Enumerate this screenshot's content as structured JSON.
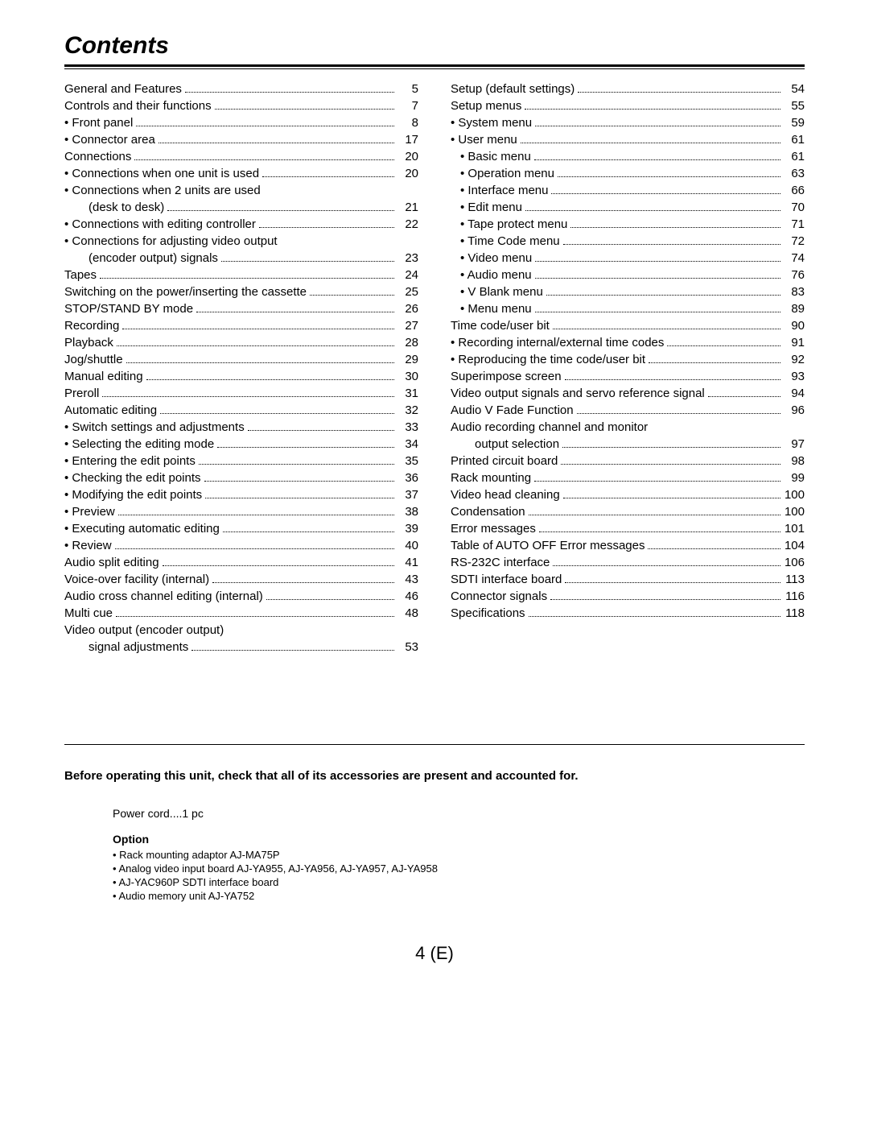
{
  "title": "Contents",
  "left": [
    {
      "label": "General and Features",
      "page": "5",
      "indent": 0
    },
    {
      "label": "Controls and their functions",
      "page": "7",
      "indent": 0
    },
    {
      "label": "• Front panel",
      "page": "8",
      "indent": 0
    },
    {
      "label": "• Connector area",
      "page": "17",
      "indent": 0
    },
    {
      "label": "Connections",
      "page": "20",
      "indent": 0
    },
    {
      "label": "• Connections when one unit is used",
      "page": "20",
      "indent": 0
    },
    {
      "label": "• Connections when 2 units are used",
      "noline": true,
      "indent": 0
    },
    {
      "label": "(desk to desk)",
      "page": "21",
      "indent": 2
    },
    {
      "label": "• Connections with editing controller",
      "page": "22",
      "indent": 0
    },
    {
      "label": "• Connections for adjusting video output",
      "noline": true,
      "indent": 0
    },
    {
      "label": "(encoder output) signals",
      "page": "23",
      "indent": 2
    },
    {
      "label": "Tapes",
      "page": "24",
      "indent": 0
    },
    {
      "label": "Switching on the power/inserting the cassette",
      "page": "25",
      "indent": 0
    },
    {
      "label": "STOP/STAND BY mode",
      "page": "26",
      "indent": 0
    },
    {
      "label": "Recording",
      "page": "27",
      "indent": 0
    },
    {
      "label": "Playback",
      "page": "28",
      "indent": 0
    },
    {
      "label": "Jog/shuttle",
      "page": "29",
      "indent": 0
    },
    {
      "label": "Manual editing",
      "page": "30",
      "indent": 0
    },
    {
      "label": "Preroll",
      "page": "31",
      "indent": 0
    },
    {
      "label": "Automatic editing",
      "page": "32",
      "indent": 0
    },
    {
      "label": "• Switch settings and adjustments",
      "page": "33",
      "indent": 0
    },
    {
      "label": "• Selecting the editing mode",
      "page": "34",
      "indent": 0
    },
    {
      "label": "• Entering the edit points",
      "page": "35",
      "indent": 0
    },
    {
      "label": "• Checking the edit points",
      "page": "36",
      "indent": 0
    },
    {
      "label": "• Modifying the edit points",
      "page": "37",
      "indent": 0
    },
    {
      "label": "• Preview",
      "page": "38",
      "indent": 0
    },
    {
      "label": "• Executing automatic editing",
      "page": "39",
      "indent": 0
    },
    {
      "label": "• Review",
      "page": "40",
      "indent": 0
    },
    {
      "label": "Audio split editing",
      "page": "41",
      "indent": 0
    },
    {
      "label": "Voice-over facility (internal)",
      "page": "43",
      "indent": 0
    },
    {
      "label": "Audio cross channel editing (internal)",
      "page": "46",
      "indent": 0
    },
    {
      "label": "Multi cue",
      "page": "48",
      "indent": 0
    },
    {
      "label": "Video output (encoder output)",
      "noline": true,
      "indent": 0
    },
    {
      "label": "signal adjustments",
      "page": "53",
      "indent": 2
    }
  ],
  "right": [
    {
      "label": "Setup (default settings)",
      "page": "54",
      "indent": 0
    },
    {
      "label": "Setup menus",
      "page": "55",
      "indent": 0
    },
    {
      "label": "• System menu",
      "page": "59",
      "indent": 0
    },
    {
      "label": "• User menu",
      "page": "61",
      "indent": 0
    },
    {
      "label": "• Basic menu",
      "page": "61",
      "indent": 1
    },
    {
      "label": "• Operation menu",
      "page": "63",
      "indent": 1
    },
    {
      "label": "• Interface menu",
      "page": "66",
      "indent": 1
    },
    {
      "label": "• Edit menu",
      "page": "70",
      "indent": 1
    },
    {
      "label": "• Tape protect menu",
      "page": "71",
      "indent": 1
    },
    {
      "label": "• Time Code menu",
      "page": "72",
      "indent": 1
    },
    {
      "label": "• Video menu",
      "page": "74",
      "indent": 1
    },
    {
      "label": "• Audio menu",
      "page": "76",
      "indent": 1
    },
    {
      "label": "• V Blank menu",
      "page": "83",
      "indent": 1
    },
    {
      "label": "• Menu menu",
      "page": "89",
      "indent": 1
    },
    {
      "label": "Time code/user bit",
      "page": "90",
      "indent": 0
    },
    {
      "label": "• Recording internal/external time codes",
      "page": "91",
      "indent": 0
    },
    {
      "label": "• Reproducing the time code/user bit",
      "page": "92",
      "indent": 0
    },
    {
      "label": "Superimpose screen",
      "page": "93",
      "indent": 0
    },
    {
      "label": "Video output signals and servo reference signal",
      "page": "94",
      "indent": 0
    },
    {
      "label": "Audio V Fade Function",
      "page": "96",
      "indent": 0
    },
    {
      "label": "Audio recording channel and monitor",
      "noline": true,
      "indent": 0
    },
    {
      "label": "output selection",
      "page": "97",
      "indent": 2
    },
    {
      "label": "Printed circuit board",
      "page": "98",
      "indent": 0
    },
    {
      "label": "Rack mounting",
      "page": "99",
      "indent": 0
    },
    {
      "label": "Video head cleaning",
      "page": "100",
      "indent": 0
    },
    {
      "label": "Condensation",
      "page": "100",
      "indent": 0
    },
    {
      "label": "Error messages",
      "page": "101",
      "indent": 0
    },
    {
      "label": "Table of AUTO OFF Error messages",
      "page": "104",
      "indent": 0
    },
    {
      "label": "RS-232C interface",
      "page": "106",
      "indent": 0
    },
    {
      "label": "SDTI interface board",
      "page": "113",
      "indent": 0
    },
    {
      "label": "Connector signals",
      "page": "116",
      "indent": 0
    },
    {
      "label": "Specifications",
      "page": "118",
      "indent": 0
    }
  ],
  "notice": "Before operating this unit, check that all of its accessories are present and accounted for.",
  "accessories": {
    "power_cord": "Power cord....1 pc",
    "option_title": "Option",
    "options": [
      "• Rack mounting adaptor AJ-MA75P",
      "• Analog video input board AJ-YA955, AJ-YA956, AJ-YA957, AJ-YA958",
      "• AJ-YAC960P SDTI interface board",
      "• Audio memory unit AJ-YA752"
    ]
  },
  "page_number": "4 (E)"
}
